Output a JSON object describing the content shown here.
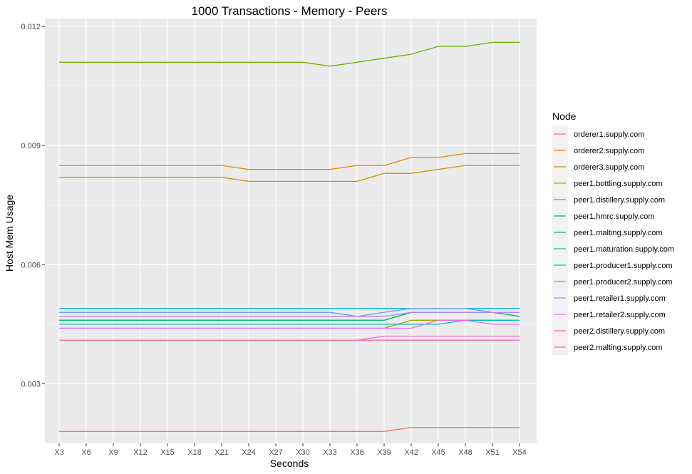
{
  "chart_data": {
    "type": "line",
    "title": "1000 Transactions - Memory - Peers",
    "xlabel": "Seconds",
    "ylabel": "Host Mem Usage",
    "x": [
      "X3",
      "X6",
      "X9",
      "X12",
      "X15",
      "X18",
      "X21",
      "X24",
      "X27",
      "X30",
      "X33",
      "X36",
      "X39",
      "X42",
      "X45",
      "X48",
      "X51",
      "X54"
    ],
    "y_ticks": [
      "0.003",
      "0.006",
      "0.009",
      "0.012"
    ],
    "ylim": [
      0.0015,
      0.0122
    ],
    "grid": true,
    "legend": {
      "title": "Node",
      "position": "right"
    },
    "series": [
      {
        "name": "orderer1.supply.com",
        "color": "#F8766D",
        "values": [
          0.0018,
          0.0018,
          0.0018,
          0.0018,
          0.0018,
          0.0018,
          0.0018,
          0.0018,
          0.0018,
          0.0018,
          0.0018,
          0.0018,
          0.0018,
          0.0019,
          0.0019,
          0.0019,
          0.0019,
          0.0019
        ]
      },
      {
        "name": "orderer2.supply.com",
        "color": "#E58700",
        "values": [
          0.0085,
          0.0085,
          0.0085,
          0.0085,
          0.0085,
          0.0085,
          0.0085,
          0.0084,
          0.0084,
          0.0084,
          0.0084,
          0.0085,
          0.0085,
          0.0087,
          0.0087,
          0.0088,
          0.0088,
          0.0088
        ]
      },
      {
        "name": "orderer3.supply.com",
        "color": "#C99800",
        "values": [
          0.0082,
          0.0082,
          0.0082,
          0.0082,
          0.0082,
          0.0082,
          0.0082,
          0.0081,
          0.0081,
          0.0081,
          0.0081,
          0.0081,
          0.0083,
          0.0083,
          0.0084,
          0.0085,
          0.0085,
          0.0085
        ]
      },
      {
        "name": "peer1.bottling.supply.com",
        "color": "#A3A500",
        "values": [
          0.0044,
          0.0044,
          0.0044,
          0.0044,
          0.0044,
          0.0044,
          0.0044,
          0.0044,
          0.0044,
          0.0044,
          0.0044,
          0.0044,
          0.0044,
          0.0046,
          0.0046,
          0.0046,
          0.0046,
          0.0046
        ]
      },
      {
        "name": "peer1.distillery.supply.com",
        "color": "#6BB100",
        "values": [
          0.0111,
          0.0111,
          0.0111,
          0.0111,
          0.0111,
          0.0111,
          0.0111,
          0.0111,
          0.0111,
          0.0111,
          0.011,
          0.0111,
          0.0112,
          0.0113,
          0.0115,
          0.0115,
          0.0116,
          0.0116
        ]
      },
      {
        "name": "peer1.hmrc.supply.com",
        "color": "#00BA38",
        "values": [
          0.0046,
          0.0046,
          0.0046,
          0.0046,
          0.0046,
          0.0046,
          0.0046,
          0.0046,
          0.0046,
          0.0046,
          0.0046,
          0.0046,
          0.0046,
          0.0048,
          0.0048,
          0.0048,
          0.0048,
          0.0047
        ]
      },
      {
        "name": "peer1.malting.supply.com",
        "color": "#00BF7D",
        "values": [
          0.0046,
          0.0046,
          0.0046,
          0.0046,
          0.0046,
          0.0046,
          0.0046,
          0.0046,
          0.0046,
          0.0046,
          0.0046,
          0.0046,
          0.0046,
          0.0048,
          0.0048,
          0.0048,
          0.0048,
          0.0048
        ]
      },
      {
        "name": "peer1.maturation.supply.com",
        "color": "#00C0B8",
        "values": [
          0.0045,
          0.0045,
          0.0045,
          0.0045,
          0.0045,
          0.0045,
          0.0045,
          0.0045,
          0.0045,
          0.0045,
          0.0045,
          0.0045,
          0.0045,
          0.0045,
          0.0045,
          0.0046,
          0.0046,
          0.0046
        ]
      },
      {
        "name": "peer1.producer1.supply.com",
        "color": "#00B4EF",
        "values": [
          0.0049,
          0.0049,
          0.0049,
          0.0049,
          0.0049,
          0.0049,
          0.0049,
          0.0049,
          0.0049,
          0.0049,
          0.0049,
          0.0049,
          0.0049,
          0.0049,
          0.0049,
          0.0049,
          0.0049,
          0.0049
        ]
      },
      {
        "name": "peer1.producer2.supply.com",
        "color": "#619CFF",
        "values": [
          0.0048,
          0.0048,
          0.0048,
          0.0048,
          0.0048,
          0.0048,
          0.0048,
          0.0048,
          0.0048,
          0.0048,
          0.0048,
          0.0047,
          0.0048,
          0.0049,
          0.0049,
          0.0049,
          0.0048,
          0.0048
        ]
      },
      {
        "name": "peer1.retailer1.supply.com",
        "color": "#B983FF",
        "values": [
          0.0047,
          0.0047,
          0.0047,
          0.0047,
          0.0047,
          0.0047,
          0.0047,
          0.0047,
          0.0047,
          0.0047,
          0.0047,
          0.0047,
          0.0047,
          0.0048,
          0.0048,
          0.0048,
          0.0048,
          0.0048
        ]
      },
      {
        "name": "peer1.retailer2.supply.com",
        "color": "#E76BF3",
        "values": [
          0.0044,
          0.0044,
          0.0044,
          0.0044,
          0.0044,
          0.0044,
          0.0044,
          0.0044,
          0.0044,
          0.0044,
          0.0044,
          0.0044,
          0.0044,
          0.0044,
          0.0046,
          0.0046,
          0.0045,
          0.0045
        ]
      },
      {
        "name": "peer2.distillery.supply.com",
        "color": "#FD61D1",
        "values": [
          0.0041,
          0.0041,
          0.0041,
          0.0041,
          0.0041,
          0.0041,
          0.0041,
          0.0041,
          0.0041,
          0.0041,
          0.0041,
          0.0041,
          0.0042,
          0.0042,
          0.0042,
          0.0042,
          0.0042,
          0.0042
        ]
      },
      {
        "name": "peer2.malting.supply.com",
        "color": "#FF67A4",
        "values": [
          0.0041,
          0.0041,
          0.0041,
          0.0041,
          0.0041,
          0.0041,
          0.0041,
          0.0041,
          0.0041,
          0.0041,
          0.0041,
          0.0041,
          0.0041,
          0.0041,
          0.0041,
          0.0041,
          0.0041,
          0.0041
        ]
      }
    ]
  }
}
